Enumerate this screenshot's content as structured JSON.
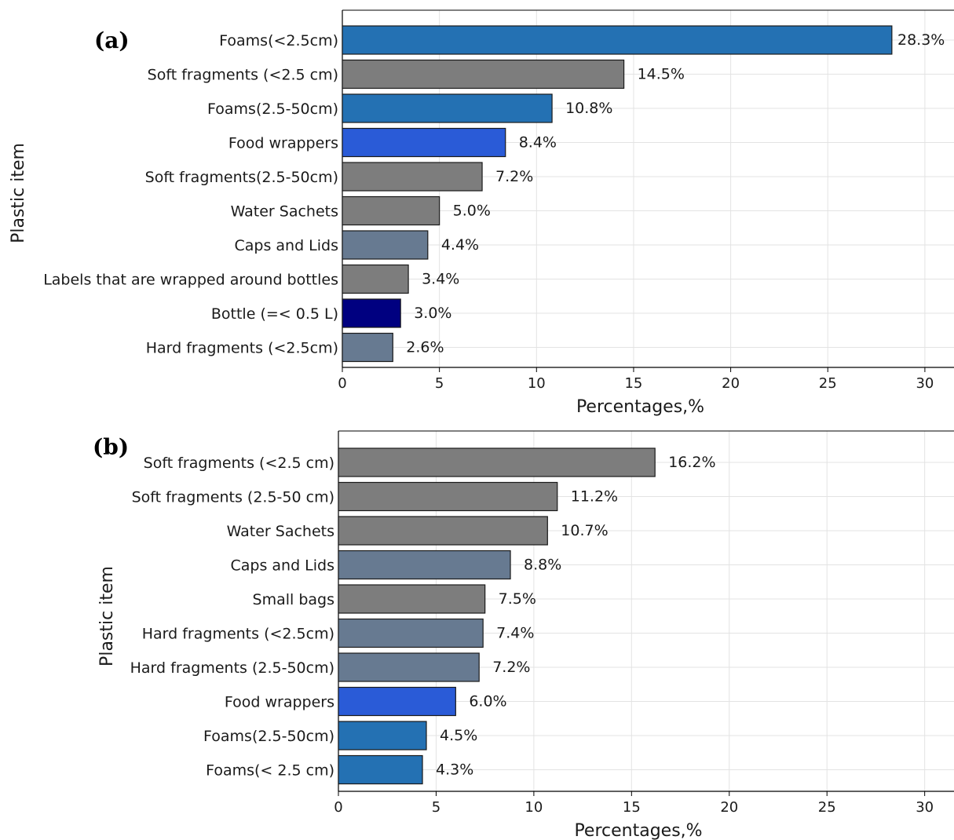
{
  "chart_data": [
    {
      "type": "bar",
      "orientation": "horizontal",
      "panel_label": "(a)",
      "xlabel": "Percentages,%",
      "ylabel": "Plastic item",
      "xlim": [
        0,
        31.5
      ],
      "xticks": [
        "0",
        "5",
        "10",
        "15",
        "20",
        "25",
        "30"
      ],
      "grid": true,
      "categories": [
        "Foams(<2.5cm)",
        "Soft fragments (<2.5 cm)",
        "Foams(2.5-50cm)",
        "Food wrappers",
        "Soft fragments(2.5-50cm)",
        "Water Sachets",
        "Caps and Lids",
        "Labels that are wrapped around bottles",
        "Bottle (=< 0.5 L)",
        "Hard fragments (<2.5cm)"
      ],
      "values": [
        28.3,
        14.5,
        10.8,
        8.4,
        7.2,
        5.0,
        4.4,
        3.4,
        3.0,
        2.6
      ],
      "value_labels": [
        "28.3%",
        "14.5%",
        "10.8%",
        "8.4%",
        "7.2%",
        "5.0%",
        "4.4%",
        "3.4%",
        "3.0%",
        "2.6%"
      ],
      "colors": [
        "#2471b3",
        "#7d7d7d",
        "#2471b3",
        "#2a5bd7",
        "#7d7d7d",
        "#7d7d7d",
        "#677a91",
        "#7d7d7d",
        "#000080",
        "#677a91"
      ]
    },
    {
      "type": "bar",
      "orientation": "horizontal",
      "panel_label": "(b)",
      "xlabel": "Percentages,%",
      "ylabel": "Plastic item",
      "xlim": [
        0,
        31.5
      ],
      "xticks": [
        "0",
        "5",
        "10",
        "15",
        "20",
        "25",
        "30"
      ],
      "grid": true,
      "categories": [
        "Soft fragments (<2.5 cm)",
        "Soft fragments (2.5-50 cm)",
        "Water Sachets",
        "Caps and Lids",
        "Small bags",
        "Hard fragments (<2.5cm)",
        "Hard fragments (2.5-50cm)",
        "Food wrappers",
        "Foams(2.5-50cm)",
        "Foams(< 2.5 cm)"
      ],
      "values": [
        16.2,
        11.2,
        10.7,
        8.8,
        7.5,
        7.4,
        7.2,
        6.0,
        4.5,
        4.3
      ],
      "value_labels": [
        "16.2%",
        "11.2%",
        "10.7%",
        "8.8%",
        "7.5%",
        "7.4%",
        "7.2%",
        "6.0%",
        "4.5%",
        "4.3%"
      ],
      "colors": [
        "#7d7d7d",
        "#7d7d7d",
        "#7d7d7d",
        "#677a91",
        "#7d7d7d",
        "#677a91",
        "#677a91",
        "#2a5bd7",
        "#2471b3",
        "#2471b3"
      ]
    }
  ]
}
